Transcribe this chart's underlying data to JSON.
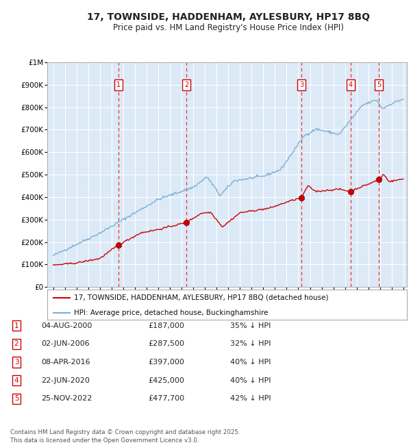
{
  "title_line1": "17, TOWNSIDE, HADDENHAM, AYLESBURY, HP17 8BQ",
  "title_line2": "Price paid vs. HM Land Registry's House Price Index (HPI)",
  "background_color": "#dce9f7",
  "fig_bg_color": "#ffffff",
  "hpi_color": "#7bafd4",
  "price_color": "#cc0000",
  "grid_color": "#ffffff",
  "dashed_color": "#ee3333",
  "ylim": [
    0,
    1000000
  ],
  "yticks": [
    0,
    100000,
    200000,
    300000,
    400000,
    500000,
    600000,
    700000,
    800000,
    900000,
    1000000
  ],
  "ytick_labels": [
    "£0",
    "£100K",
    "£200K",
    "£300K",
    "£400K",
    "£500K",
    "£600K",
    "£700K",
    "£800K",
    "£900K",
    "£1M"
  ],
  "year_start": 1995,
  "year_end": 2025,
  "purchases": [
    {
      "num": 1,
      "date": "04-AUG-2000",
      "year": 2000.58,
      "price": 187000,
      "pct": "35%"
    },
    {
      "num": 2,
      "date": "02-JUN-2006",
      "year": 2006.42,
      "price": 287500,
      "pct": "32%"
    },
    {
      "num": 3,
      "date": "08-APR-2016",
      "year": 2016.27,
      "price": 397000,
      "pct": "40%"
    },
    {
      "num": 4,
      "date": "22-JUN-2020",
      "year": 2020.47,
      "price": 425000,
      "pct": "40%"
    },
    {
      "num": 5,
      "date": "25-NOV-2022",
      "year": 2022.9,
      "price": 477700,
      "pct": "42%"
    }
  ],
  "legend_label_red": "17, TOWNSIDE, HADDENHAM, AYLESBURY, HP17 8BQ (detached house)",
  "legend_label_blue": "HPI: Average price, detached house, Buckinghamshire",
  "footer_line1": "Contains HM Land Registry data © Crown copyright and database right 2025.",
  "footer_line2": "This data is licensed under the Open Government Licence v3.0."
}
